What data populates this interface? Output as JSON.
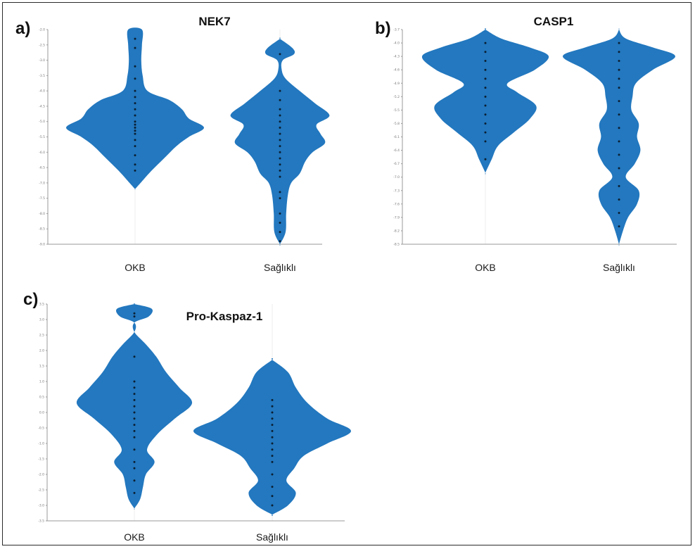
{
  "chart_data": [
    {
      "type": "violin",
      "panel_label": "a)",
      "title": "NEK7",
      "categories": [
        "OKB",
        "Sağlıklı"
      ],
      "y_ticks": [
        "-2.0",
        "-2.5",
        "-3.0",
        "-3.5",
        "-4.0",
        "-4.5",
        "-5.0",
        "-5.5",
        "-6.0",
        "-6.5",
        "-7.0",
        "-7.5",
        "-8.0",
        "-8.5",
        "-9.0"
      ],
      "ylim": [
        -9.0,
        -2.0
      ],
      "color": "#2378bf",
      "series": [
        {
          "category": "OKB",
          "density": [
            [
              -2.0,
              0.1
            ],
            [
              -2.5,
              0.1
            ],
            [
              -3.0,
              0.09
            ],
            [
              -3.5,
              0.11
            ],
            [
              -4.0,
              0.18
            ],
            [
              -4.3,
              0.5
            ],
            [
              -4.6,
              0.68
            ],
            [
              -4.9,
              0.78
            ],
            [
              -5.2,
              1.0
            ],
            [
              -5.5,
              0.78
            ],
            [
              -5.8,
              0.6
            ],
            [
              -6.2,
              0.42
            ],
            [
              -6.6,
              0.24
            ],
            [
              -7.0,
              0.08
            ],
            [
              -7.2,
              0.0
            ]
          ],
          "points": [
            -2.3,
            -2.6,
            -3.2,
            -3.6,
            -4.0,
            -4.2,
            -4.4,
            -4.6,
            -4.8,
            -5.0,
            -5.1,
            -5.2,
            -5.3,
            -5.4,
            -5.6,
            -5.8,
            -6.1,
            -6.4,
            -6.6
          ]
        },
        {
          "category": "Sağlıklı",
          "density": [
            [
              -2.3,
              0.0
            ],
            [
              -2.6,
              0.22
            ],
            [
              -2.8,
              0.25
            ],
            [
              -3.0,
              0.05
            ],
            [
              -3.3,
              0.03
            ],
            [
              -3.6,
              0.1
            ],
            [
              -4.0,
              0.35
            ],
            [
              -4.4,
              0.62
            ],
            [
              -4.8,
              0.88
            ],
            [
              -5.1,
              0.65
            ],
            [
              -5.4,
              0.72
            ],
            [
              -5.7,
              0.8
            ],
            [
              -6.0,
              0.58
            ],
            [
              -6.3,
              0.45
            ],
            [
              -6.7,
              0.35
            ],
            [
              -7.0,
              0.2
            ],
            [
              -7.4,
              0.14
            ],
            [
              -8.0,
              0.11
            ],
            [
              -8.6,
              0.1
            ],
            [
              -9.0,
              0.0
            ]
          ],
          "points": [
            -2.8,
            -4.0,
            -4.3,
            -4.6,
            -4.8,
            -5.0,
            -5.2,
            -5.4,
            -5.6,
            -5.8,
            -6.0,
            -6.2,
            -6.4,
            -6.6,
            -6.8,
            -7.3,
            -7.5,
            -8.0,
            -8.3,
            -8.6,
            -8.9
          ]
        }
      ]
    },
    {
      "type": "violin",
      "panel_label": "b)",
      "title": "CASP1",
      "categories": [
        "OKB",
        "Sağlıklı"
      ],
      "y_ticks": [
        "-3.7",
        "-4.0",
        "-4.3",
        "-4.6",
        "-4.9",
        "-5.2",
        "-5.5",
        "-5.8",
        "-6.1",
        "-6.4",
        "-6.7",
        "-7.0",
        "-7.3",
        "-7.6",
        "-7.9",
        "-8.2",
        "-8.5"
      ],
      "ylim": [
        -8.5,
        -3.7
      ],
      "color": "#2378bf",
      "series": [
        {
          "category": "OKB",
          "density": [
            [
              -3.7,
              0.0
            ],
            [
              -3.9,
              0.25
            ],
            [
              -4.1,
              0.7
            ],
            [
              -4.3,
              1.0
            ],
            [
              -4.6,
              0.78
            ],
            [
              -4.9,
              0.35
            ],
            [
              -5.1,
              0.5
            ],
            [
              -5.4,
              0.8
            ],
            [
              -5.7,
              0.7
            ],
            [
              -6.0,
              0.45
            ],
            [
              -6.3,
              0.2
            ],
            [
              -6.6,
              0.1
            ],
            [
              -6.9,
              0.0
            ]
          ],
          "points": [
            -4.0,
            -4.2,
            -4.4,
            -4.6,
            -4.8,
            -5.0,
            -5.2,
            -5.4,
            -5.6,
            -5.8,
            -6.0,
            -6.2,
            -6.6
          ]
        },
        {
          "category": "Sağlıklı",
          "density": [
            [
              -3.7,
              0.0
            ],
            [
              -3.9,
              0.12
            ],
            [
              -4.1,
              0.6
            ],
            [
              -4.3,
              1.0
            ],
            [
              -4.6,
              0.6
            ],
            [
              -4.9,
              0.3
            ],
            [
              -5.2,
              0.24
            ],
            [
              -5.5,
              0.22
            ],
            [
              -5.8,
              0.35
            ],
            [
              -6.1,
              0.32
            ],
            [
              -6.4,
              0.38
            ],
            [
              -6.7,
              0.28
            ],
            [
              -7.0,
              0.12
            ],
            [
              -7.3,
              0.35
            ],
            [
              -7.6,
              0.32
            ],
            [
              -7.9,
              0.16
            ],
            [
              -8.2,
              0.07
            ],
            [
              -8.5,
              0.0
            ]
          ],
          "points": [
            -4.0,
            -4.2,
            -4.4,
            -4.6,
            -4.8,
            -5.0,
            -5.3,
            -5.6,
            -5.9,
            -6.2,
            -6.5,
            -6.8,
            -7.2,
            -7.5,
            -7.8,
            -8.1
          ]
        }
      ]
    },
    {
      "type": "violin",
      "panel_label": "c)",
      "title": "Pro-Kaspaz-1",
      "categories": [
        "OKB",
        "Sağlıklı"
      ],
      "y_ticks": [
        "3.5",
        "3.0",
        "2.5",
        "2.0",
        "1.5",
        "1.0",
        "0.5",
        "0.0",
        "-0.5",
        "-1.0",
        "-1.5",
        "-2.0",
        "-2.5",
        "-3.0",
        "-3.5"
      ],
      "ylim": [
        -3.5,
        3.5
      ],
      "color": "#2378bf",
      "series": [
        {
          "category": "OKB",
          "density": [
            [
              3.5,
              0.0
            ],
            [
              3.35,
              0.3
            ],
            [
              3.1,
              0.25
            ],
            [
              2.9,
              0.0
            ],
            [
              2.6,
              0.0
            ],
            [
              2.2,
              0.2
            ],
            [
              1.8,
              0.38
            ],
            [
              1.3,
              0.55
            ],
            [
              0.8,
              0.78
            ],
            [
              0.3,
              1.0
            ],
            [
              -0.2,
              0.7
            ],
            [
              -0.7,
              0.4
            ],
            [
              -1.2,
              0.22
            ],
            [
              -1.6,
              0.35
            ],
            [
              -2.0,
              0.2
            ],
            [
              -2.4,
              0.15
            ],
            [
              -2.8,
              0.1
            ],
            [
              -3.1,
              0.0
            ]
          ],
          "points": [
            3.1,
            3.2,
            1.8,
            1.0,
            0.8,
            0.6,
            0.4,
            0.2,
            0.0,
            -0.2,
            -0.4,
            -0.6,
            -0.8,
            -1.2,
            -1.6,
            -1.8,
            -2.2,
            -2.6
          ]
        },
        {
          "category": "Sağlıklı",
          "density": [
            [
              1.7,
              0.0
            ],
            [
              1.3,
              0.2
            ],
            [
              0.8,
              0.3
            ],
            [
              0.3,
              0.45
            ],
            [
              -0.2,
              0.7
            ],
            [
              -0.6,
              1.0
            ],
            [
              -1.0,
              0.7
            ],
            [
              -1.4,
              0.4
            ],
            [
              -1.8,
              0.28
            ],
            [
              -2.2,
              0.18
            ],
            [
              -2.6,
              0.3
            ],
            [
              -3.0,
              0.2
            ],
            [
              -3.3,
              0.0
            ]
          ],
          "points": [
            0.4,
            0.2,
            0.0,
            -0.2,
            -0.4,
            -0.6,
            -0.8,
            -1.0,
            -1.2,
            -1.4,
            -1.6,
            -2.0,
            -2.4,
            -2.7,
            -3.0
          ]
        }
      ]
    }
  ]
}
